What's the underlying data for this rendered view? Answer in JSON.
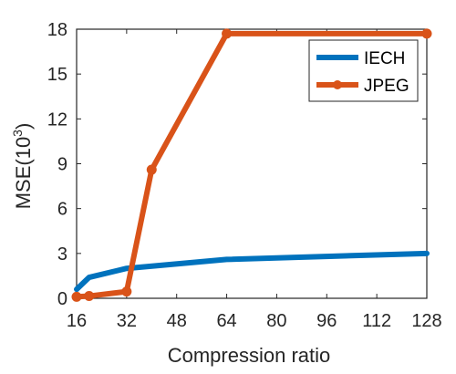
{
  "chart_data": {
    "type": "line",
    "xlabel": "Compression ratio",
    "ylabel_main": "MSE(10",
    "ylabel_sup": "3",
    "ylabel_close": ")",
    "xlim": [
      16,
      128
    ],
    "ylim": [
      0,
      18
    ],
    "xticks": [
      16,
      32,
      48,
      64,
      80,
      96,
      112,
      128
    ],
    "yticks": [
      0,
      3,
      6,
      9,
      12,
      15,
      18
    ],
    "grid": false,
    "legend_position": "top-right",
    "series": [
      {
        "name": "IECH",
        "color": "#0072BD",
        "marker": "none",
        "x": [
          16,
          20,
          32,
          64,
          128
        ],
        "y": [
          0.6,
          1.4,
          2.0,
          2.6,
          3.0
        ]
      },
      {
        "name": "JPEG",
        "color": "#D95319",
        "marker": "circle",
        "x": [
          16,
          20,
          32,
          40,
          64,
          128
        ],
        "y": [
          0.1,
          0.15,
          0.45,
          8.6,
          17.7,
          17.7
        ]
      }
    ]
  }
}
